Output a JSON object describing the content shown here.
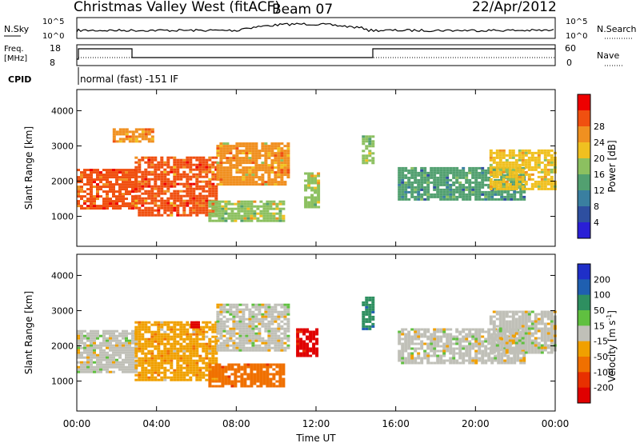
{
  "header": {
    "station": "Christmas Valley West (fitACF)",
    "beam": "Beam 07",
    "date": "22/Apr/2012"
  },
  "strip_labels": {
    "nsky": "N.Sky",
    "nsky_ticks": [
      "10^5",
      "10^0"
    ],
    "nsearch": "N.Search",
    "nsearch_ticks": [
      "10^5",
      "10^0"
    ],
    "freq_line1": "Freq.",
    "freq_line2": "[MHz]",
    "freq_ticks": [
      "18",
      "8"
    ],
    "nave": "Nave",
    "nave_ticks": [
      "60",
      "0"
    ],
    "cpid": "CPID",
    "cpid_value": "normal (fast) -151 IF"
  },
  "colors": {
    "power_scale": [
      "#2a1fd6",
      "#2e4fa0",
      "#3a7fa0",
      "#52a070",
      "#8cc060",
      "#f0c020",
      "#f09020",
      "#f05010",
      "#ee0000"
    ],
    "velocity_scale": [
      "#1f2fc8",
      "#1f5fb0",
      "#2e8f60",
      "#60c040",
      "#c0c0b8",
      "#f0a000",
      "#f07000",
      "#e83000",
      "#e00000"
    ],
    "gray_scatter": "#c0c0b8"
  },
  "chart_data": [
    {
      "type": "heatmap",
      "panel": "power",
      "ylabel": "Slant Range [km]",
      "yticks": [
        "1000",
        "2000",
        "3000",
        "4000"
      ],
      "ylim": [
        150,
        4600
      ],
      "colorbar_label": "Power [dB]",
      "colorbar_ticks": [
        "4",
        "8",
        "12",
        "16",
        "20",
        "24",
        "28"
      ],
      "regions": [
        {
          "t0": 0.0,
          "t1": 2.9,
          "r0": 1250,
          "r1": 2350,
          "level": 27
        },
        {
          "t0": 2.9,
          "t1": 7.0,
          "r0": 1000,
          "r1": 2700,
          "level": 25
        },
        {
          "t0": 7.0,
          "t1": 10.6,
          "r0": 1900,
          "r1": 3100,
          "level": 22
        },
        {
          "t0": 6.6,
          "t1": 10.3,
          "r0": 850,
          "r1": 1450,
          "level": 17
        },
        {
          "t0": 11.4,
          "t1": 12.2,
          "r0": 1250,
          "r1": 2250,
          "level": 17
        },
        {
          "t0": 14.3,
          "t1": 14.8,
          "r0": 2500,
          "r1": 3300,
          "level": 16
        },
        {
          "t0": 16.1,
          "t1": 22.5,
          "r0": 1500,
          "r1": 2400,
          "level": 11
        },
        {
          "t0": 20.7,
          "t1": 24.0,
          "r0": 1800,
          "r1": 2900,
          "level": 19
        },
        {
          "t0": 1.8,
          "t1": 3.8,
          "r0": 3100,
          "r1": 3500,
          "level": 23
        }
      ]
    },
    {
      "type": "heatmap",
      "panel": "velocity",
      "ylabel": "Slant Range [km]",
      "yticks": [
        "1000",
        "2000",
        "3000",
        "4000"
      ],
      "ylim": [
        150,
        4600
      ],
      "colorbar_label": "Velocity [m s",
      "colorbar_label_sup": "-1",
      "colorbar_ticks": [
        "200",
        "100",
        "50",
        "15",
        "-15",
        "-50",
        "-100",
        "-200"
      ],
      "regions": [
        {
          "t0": 0.0,
          "t1": 2.9,
          "r0": 1250,
          "r1": 2450,
          "v": 0
        },
        {
          "t0": 2.9,
          "t1": 7.0,
          "r0": 1000,
          "r1": 2700,
          "v": -40
        },
        {
          "t0": 7.0,
          "t1": 10.6,
          "r0": 1900,
          "r1": 3200,
          "v": 0
        },
        {
          "t0": 6.6,
          "t1": 10.3,
          "r0": 850,
          "r1": 1500,
          "v": -80
        },
        {
          "t0": 11.0,
          "t1": 12.1,
          "r0": 1700,
          "r1": 2500,
          "v": -220
        },
        {
          "t0": 14.3,
          "t1": 14.8,
          "r0": 2500,
          "r1": 3400,
          "v": 60
        },
        {
          "t0": 16.1,
          "t1": 22.5,
          "r0": 1500,
          "r1": 2500,
          "v": 0
        },
        {
          "t0": 20.7,
          "t1": 24.0,
          "r0": 1800,
          "r1": 3000,
          "v": 0
        },
        {
          "t0": 5.7,
          "t1": 6.1,
          "r0": 2550,
          "r1": 2700,
          "v": -220
        }
      ]
    }
  ],
  "xaxis": {
    "label": "Time UT",
    "ticks": [
      "00:00",
      "04:00",
      "08:00",
      "12:00",
      "16:00",
      "20:00",
      "00:00"
    ],
    "xlim": [
      0,
      24
    ]
  }
}
